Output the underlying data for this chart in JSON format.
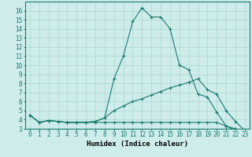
{
  "title": "",
  "xlabel": "Humidex (Indice chaleur)",
  "x": [
    0,
    1,
    2,
    3,
    4,
    5,
    6,
    7,
    8,
    9,
    10,
    11,
    12,
    13,
    14,
    15,
    16,
    17,
    18,
    19,
    20,
    21,
    22,
    23
  ],
  "line_max": [
    4.5,
    3.7,
    3.9,
    3.8,
    3.7,
    3.7,
    3.7,
    3.8,
    4.2,
    8.5,
    11.0,
    14.8,
    16.3,
    15.3,
    15.3,
    14.0,
    10.0,
    9.5,
    6.8,
    6.5,
    4.8,
    3.3,
    2.8,
    2.6
  ],
  "line_mid": [
    4.5,
    3.7,
    3.9,
    3.8,
    3.7,
    3.7,
    3.7,
    3.8,
    4.2,
    5.0,
    5.5,
    6.0,
    6.3,
    6.7,
    7.1,
    7.5,
    7.8,
    8.1,
    8.5,
    7.3,
    6.8,
    5.0,
    3.8,
    2.8
  ],
  "line_min": [
    4.5,
    3.7,
    3.9,
    3.8,
    3.7,
    3.7,
    3.7,
    3.7,
    3.7,
    3.7,
    3.7,
    3.7,
    3.7,
    3.7,
    3.7,
    3.7,
    3.7,
    3.7,
    3.7,
    3.7,
    3.7,
    3.3,
    3.0,
    2.6
  ],
  "line_color": "#1a7a6e",
  "bg_color": "#ceecea",
  "grid_color": "#aed4d0",
  "ylim": [
    3,
    17
  ],
  "yticks": [
    3,
    4,
    5,
    6,
    7,
    8,
    9,
    10,
    11,
    12,
    13,
    14,
    15,
    16
  ],
  "xlim": [
    -0.5,
    23.5
  ],
  "xticks": [
    0,
    1,
    2,
    3,
    4,
    5,
    6,
    7,
    8,
    9,
    10,
    11,
    12,
    13,
    14,
    15,
    16,
    17,
    18,
    19,
    20,
    21,
    22,
    23
  ]
}
